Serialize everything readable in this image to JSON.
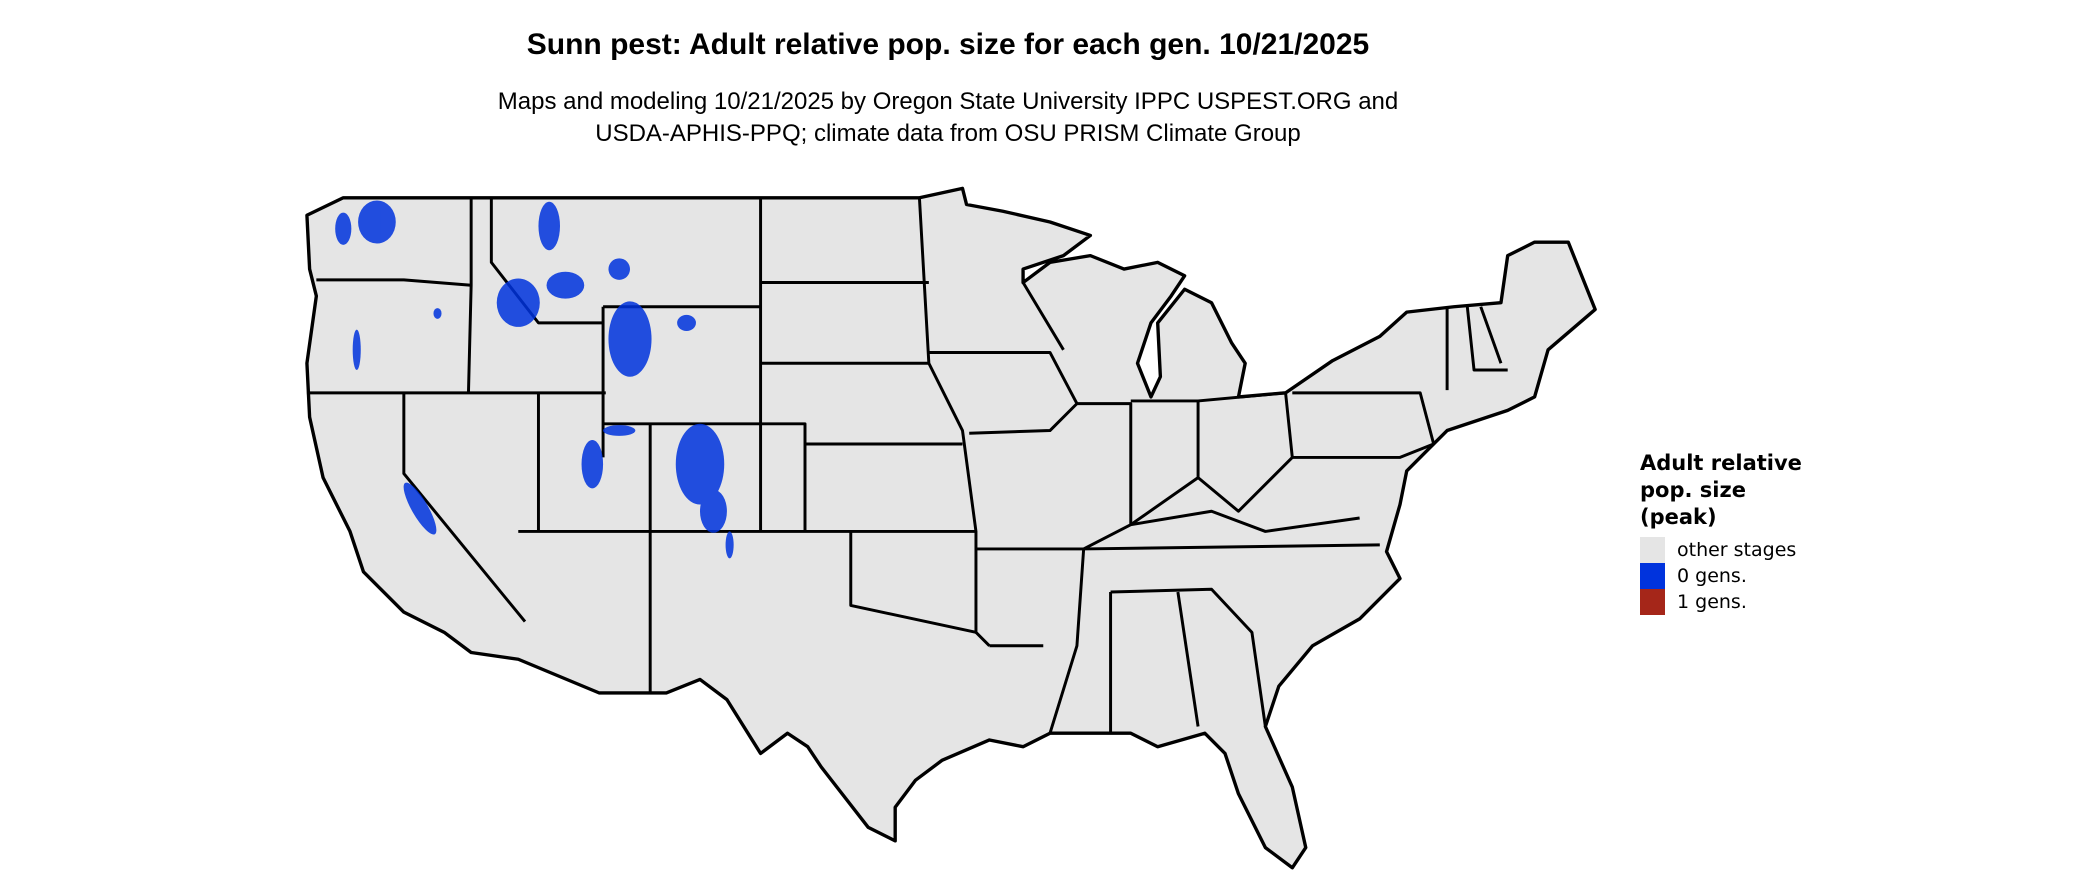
{
  "title": "Sunn pest: Adult relative pop. size for each gen. 10/21/2025",
  "subtitle_line1": "Maps and modeling 10/21/2025 by Oregon State University IPPC USPEST.ORG and",
  "subtitle_line2": "USDA-APHIS-PPQ; climate data from OSU PRISM Climate Group",
  "legend": {
    "title_line1": "Adult relative",
    "title_line2": "pop. size",
    "title_line3": "(peak)",
    "items": [
      {
        "label": "other stages",
        "color": "#e5e5e5"
      },
      {
        "label": "0 gens.",
        "color": "#0033dd"
      },
      {
        "label": "1 gens.",
        "color": "#a52619"
      }
    ]
  },
  "chart_data": {
    "type": "map",
    "region": "contiguous United States",
    "base_color": "#e5e5e5",
    "border_color": "#000000",
    "highlight_color": "#0033dd",
    "categories": [
      "other stages",
      "0 gens.",
      "1 gens."
    ]
  }
}
